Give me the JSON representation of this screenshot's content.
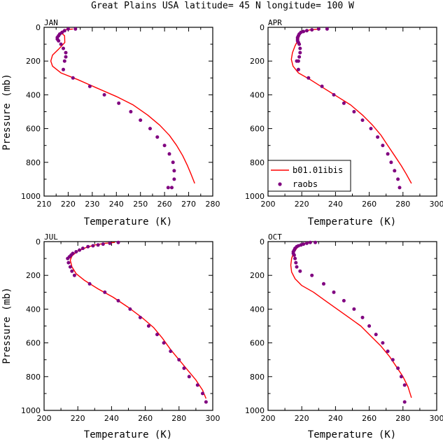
{
  "figure": {
    "title": "Great Plains USA  latitude= 45 N longitude= 100 W"
  },
  "legend": {
    "model_label": "b01.01ibis",
    "obs_label": "raobs",
    "model_color": "#ff0000",
    "obs_color": "#800080"
  },
  "chart_data": [
    {
      "type": "line",
      "panel_label": "JAN",
      "xlabel": "Temperature (K)",
      "ylabel": "Pressure (mb)",
      "xlim": [
        210,
        280
      ],
      "xticks": [
        210,
        220,
        230,
        240,
        250,
        260,
        270,
        280
      ],
      "ylim": [
        0,
        1000
      ],
      "yticks": [
        0,
        200,
        400,
        600,
        800,
        1000
      ],
      "y_inverted": true,
      "series": [
        {
          "name": "b01.01ibis",
          "style": "line",
          "x": [
            222,
            218.5,
            216.8,
            218.5,
            218.6,
            216,
            213.5,
            212.8,
            213.5,
            217,
            224,
            232,
            240,
            247,
            253,
            258,
            262,
            265,
            267.5,
            269.5,
            271,
            272.5
          ],
          "y": [
            10,
            15,
            30,
            50,
            90,
            130,
            165,
            200,
            230,
            270,
            310,
            360,
            410,
            460,
            520,
            580,
            640,
            700,
            760,
            820,
            870,
            925
          ]
        },
        {
          "name": "raobs",
          "style": "scatter",
          "x": [
            223,
            220,
            218.5,
            217.5,
            216.5,
            216,
            215.5,
            215.5,
            216,
            217,
            218,
            219,
            219,
            218.5,
            218,
            222,
            229,
            235,
            241,
            246,
            250,
            254,
            257,
            260,
            262,
            263.5,
            264,
            264,
            263,
            261.5
          ],
          "y": [
            10,
            10,
            20,
            30,
            40,
            50,
            60,
            70,
            80,
            100,
            125,
            150,
            175,
            200,
            250,
            300,
            350,
            400,
            450,
            500,
            550,
            600,
            650,
            700,
            750,
            800,
            850,
            900,
            950,
            950
          ]
        }
      ]
    },
    {
      "type": "line",
      "panel_label": "APR",
      "xlabel": "Temperature (K)",
      "ylabel": "",
      "xlim": [
        200,
        300
      ],
      "xticks": [
        200,
        220,
        240,
        260,
        280,
        300
      ],
      "ylim": [
        0,
        1000
      ],
      "yticks": [
        0,
        200,
        400,
        600,
        800,
        1000
      ],
      "y_inverted": true,
      "series": [
        {
          "name": "b01.01ibis",
          "style": "line",
          "x": [
            231,
            225,
            221,
            219,
            218,
            216,
            214.5,
            213.8,
            214.8,
            218,
            225,
            233,
            241,
            249,
            256,
            262,
            267,
            271,
            275,
            279,
            282,
            285
          ],
          "y": [
            10,
            15,
            25,
            40,
            70,
            110,
            150,
            190,
            230,
            270,
            310,
            360,
            410,
            460,
            520,
            580,
            640,
            700,
            760,
            820,
            870,
            925
          ]
        },
        {
          "name": "raobs",
          "style": "scatter",
          "x": [
            235,
            230,
            226,
            223,
            221,
            219.5,
            218.5,
            218,
            217.5,
            217.5,
            217.5,
            218,
            218.5,
            219,
            219,
            218.5,
            218,
            217,
            218,
            224,
            232,
            239,
            245,
            251,
            256,
            261,
            265,
            268,
            271,
            273,
            275,
            277,
            278
          ],
          "y": [
            10,
            10,
            15,
            20,
            25,
            30,
            40,
            50,
            60,
            70,
            80,
            90,
            100,
            125,
            150,
            175,
            200,
            200,
            250,
            300,
            350,
            400,
            450,
            500,
            550,
            600,
            650,
            700,
            750,
            800,
            850,
            900,
            950
          ]
        }
      ]
    },
    {
      "type": "line",
      "panel_label": "JUL",
      "xlabel": "Temperature (K)",
      "ylabel": "Pressure (mb)",
      "xlim": [
        200,
        300
      ],
      "xticks": [
        200,
        220,
        240,
        260,
        280,
        300
      ],
      "ylim": [
        0,
        1000
      ],
      "yticks": [
        0,
        200,
        400,
        600,
        800,
        1000
      ],
      "y_inverted": true,
      "series": [
        {
          "name": "b01.01ibis",
          "style": "line",
          "x": [
            242,
            236,
            230,
            225,
            220,
            216.5,
            215.5,
            216.5,
            219,
            224,
            232,
            241,
            250,
            258,
            265,
            270,
            275,
            280,
            285,
            290,
            294,
            296
          ],
          "y": [
            5,
            10,
            20,
            35,
            55,
            85,
            110,
            150,
            190,
            230,
            280,
            330,
            390,
            450,
            510,
            570,
            640,
            700,
            760,
            820,
            880,
            930
          ]
        },
        {
          "name": "raobs",
          "style": "scatter",
          "x": [
            244,
            239,
            235,
            232,
            229,
            226,
            223,
            221,
            219,
            217,
            216,
            215,
            214,
            214.5,
            215.5,
            216.5,
            218,
            227,
            236,
            244,
            251,
            257,
            262,
            267,
            271,
            275,
            280,
            283,
            286,
            291,
            294,
            296
          ],
          "y": [
            5,
            10,
            15,
            20,
            25,
            30,
            40,
            50,
            60,
            70,
            80,
            90,
            100,
            125,
            150,
            175,
            200,
            250,
            300,
            350,
            400,
            450,
            500,
            550,
            600,
            650,
            700,
            750,
            800,
            850,
            900,
            950
          ]
        }
      ]
    },
    {
      "type": "line",
      "panel_label": "OCT",
      "xlabel": "Temperature (K)",
      "ylabel": "",
      "xlim": [
        200,
        300
      ],
      "xticks": [
        200,
        220,
        240,
        260,
        280,
        300
      ],
      "ylim": [
        0,
        1000
      ],
      "yticks": [
        0,
        200,
        400,
        600,
        800,
        1000
      ],
      "y_inverted": true,
      "series": [
        {
          "name": "b01.01ibis",
          "style": "line",
          "x": [
            226,
            222,
            219,
            217,
            215,
            214,
            213.5,
            214,
            216,
            220,
            227,
            234,
            241,
            248,
            255,
            261,
            267,
            272,
            276,
            280,
            283,
            285
          ],
          "y": [
            5,
            10,
            20,
            40,
            70,
            100,
            140,
            180,
            220,
            260,
            300,
            350,
            400,
            450,
            500,
            560,
            620,
            680,
            740,
            800,
            860,
            925
          ]
        },
        {
          "name": "raobs",
          "style": "scatter",
          "x": [
            228,
            225,
            223,
            221,
            219.5,
            218,
            217,
            216,
            215.5,
            215,
            215,
            215.5,
            216,
            216.5,
            217,
            219,
            226,
            233,
            239,
            245,
            251,
            256,
            260,
            264,
            268,
            271,
            274,
            277,
            279,
            281,
            281
          ],
          "y": [
            5,
            5,
            10,
            15,
            20,
            25,
            30,
            40,
            50,
            60,
            70,
            80,
            100,
            125,
            150,
            175,
            200,
            250,
            300,
            350,
            400,
            450,
            500,
            550,
            600,
            650,
            700,
            750,
            800,
            850,
            950
          ]
        }
      ]
    }
  ]
}
